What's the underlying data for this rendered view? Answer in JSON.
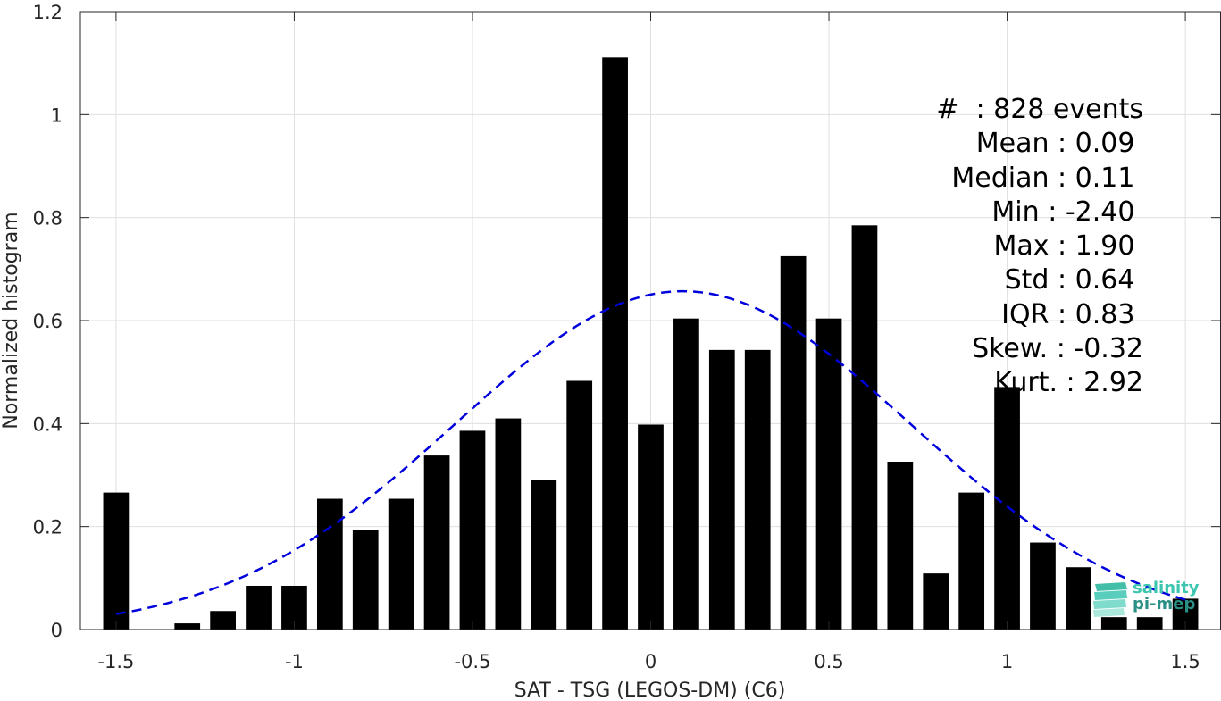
{
  "chart_data": {
    "type": "bar",
    "xlabel": "SAT - TSG (LEGOS-DM) (C6)",
    "ylabel": "Normalized histogram",
    "xlim": [
      -1.6,
      1.6
    ],
    "ylim": [
      0,
      1.2
    ],
    "xticks": [
      -1.5,
      -1,
      -0.5,
      0,
      0.5,
      1,
      1.5
    ],
    "xtick_labels": [
      "-1.5",
      "-1",
      "-0.5",
      "0",
      "0.5",
      "1",
      "1.5"
    ],
    "yticks": [
      0,
      0.2,
      0.4,
      0.6,
      0.8,
      1,
      1.2
    ],
    "ytick_labels": [
      "0",
      "0.2",
      "0.4",
      "0.6",
      "0.8",
      "1",
      "1.2"
    ],
    "grid": true,
    "bar_color": "#000000",
    "bin_centers": [
      -1.5,
      -1.4,
      -1.3,
      -1.2,
      -1.1,
      -1.0,
      -0.9,
      -0.8,
      -0.7,
      -0.6,
      -0.5,
      -0.4,
      -0.3,
      -0.2,
      -0.1,
      0.0,
      0.1,
      0.2,
      0.3,
      0.4,
      0.5,
      0.6,
      0.7,
      0.8,
      0.9,
      1.0,
      1.1,
      1.2,
      1.3,
      1.4,
      1.5
    ],
    "values": [
      0.266,
      0.0,
      0.012,
      0.036,
      0.085,
      0.085,
      0.254,
      0.193,
      0.254,
      0.338,
      0.386,
      0.41,
      0.29,
      0.483,
      1.111,
      0.398,
      0.604,
      0.543,
      0.543,
      0.725,
      0.604,
      0.785,
      0.326,
      0.109,
      0.266,
      0.471,
      0.169,
      0.121,
      0.024,
      0.024,
      0.06
    ],
    "fit_curve": {
      "type": "gaussian",
      "mean": 0.09,
      "std": 0.64,
      "peak": 0.657,
      "color": "#0000dd",
      "style": "dashed",
      "x_range": [
        -1.5,
        1.5
      ]
    }
  },
  "stats": [
    "#  : 828 events",
    "Mean : 0.09 ",
    "Median : 0.11 ",
    "Min : -2.40 ",
    "Max : 1.90 ",
    "Std : 0.64 ",
    "IQR : 0.83 ",
    "Skew. : -0.32",
    "Kurt. : 2.92"
  ],
  "logo": {
    "line1": "salinity",
    "line2": "pi-mep",
    "color1": "#3cc6b0",
    "color2": "#2a8f84"
  }
}
